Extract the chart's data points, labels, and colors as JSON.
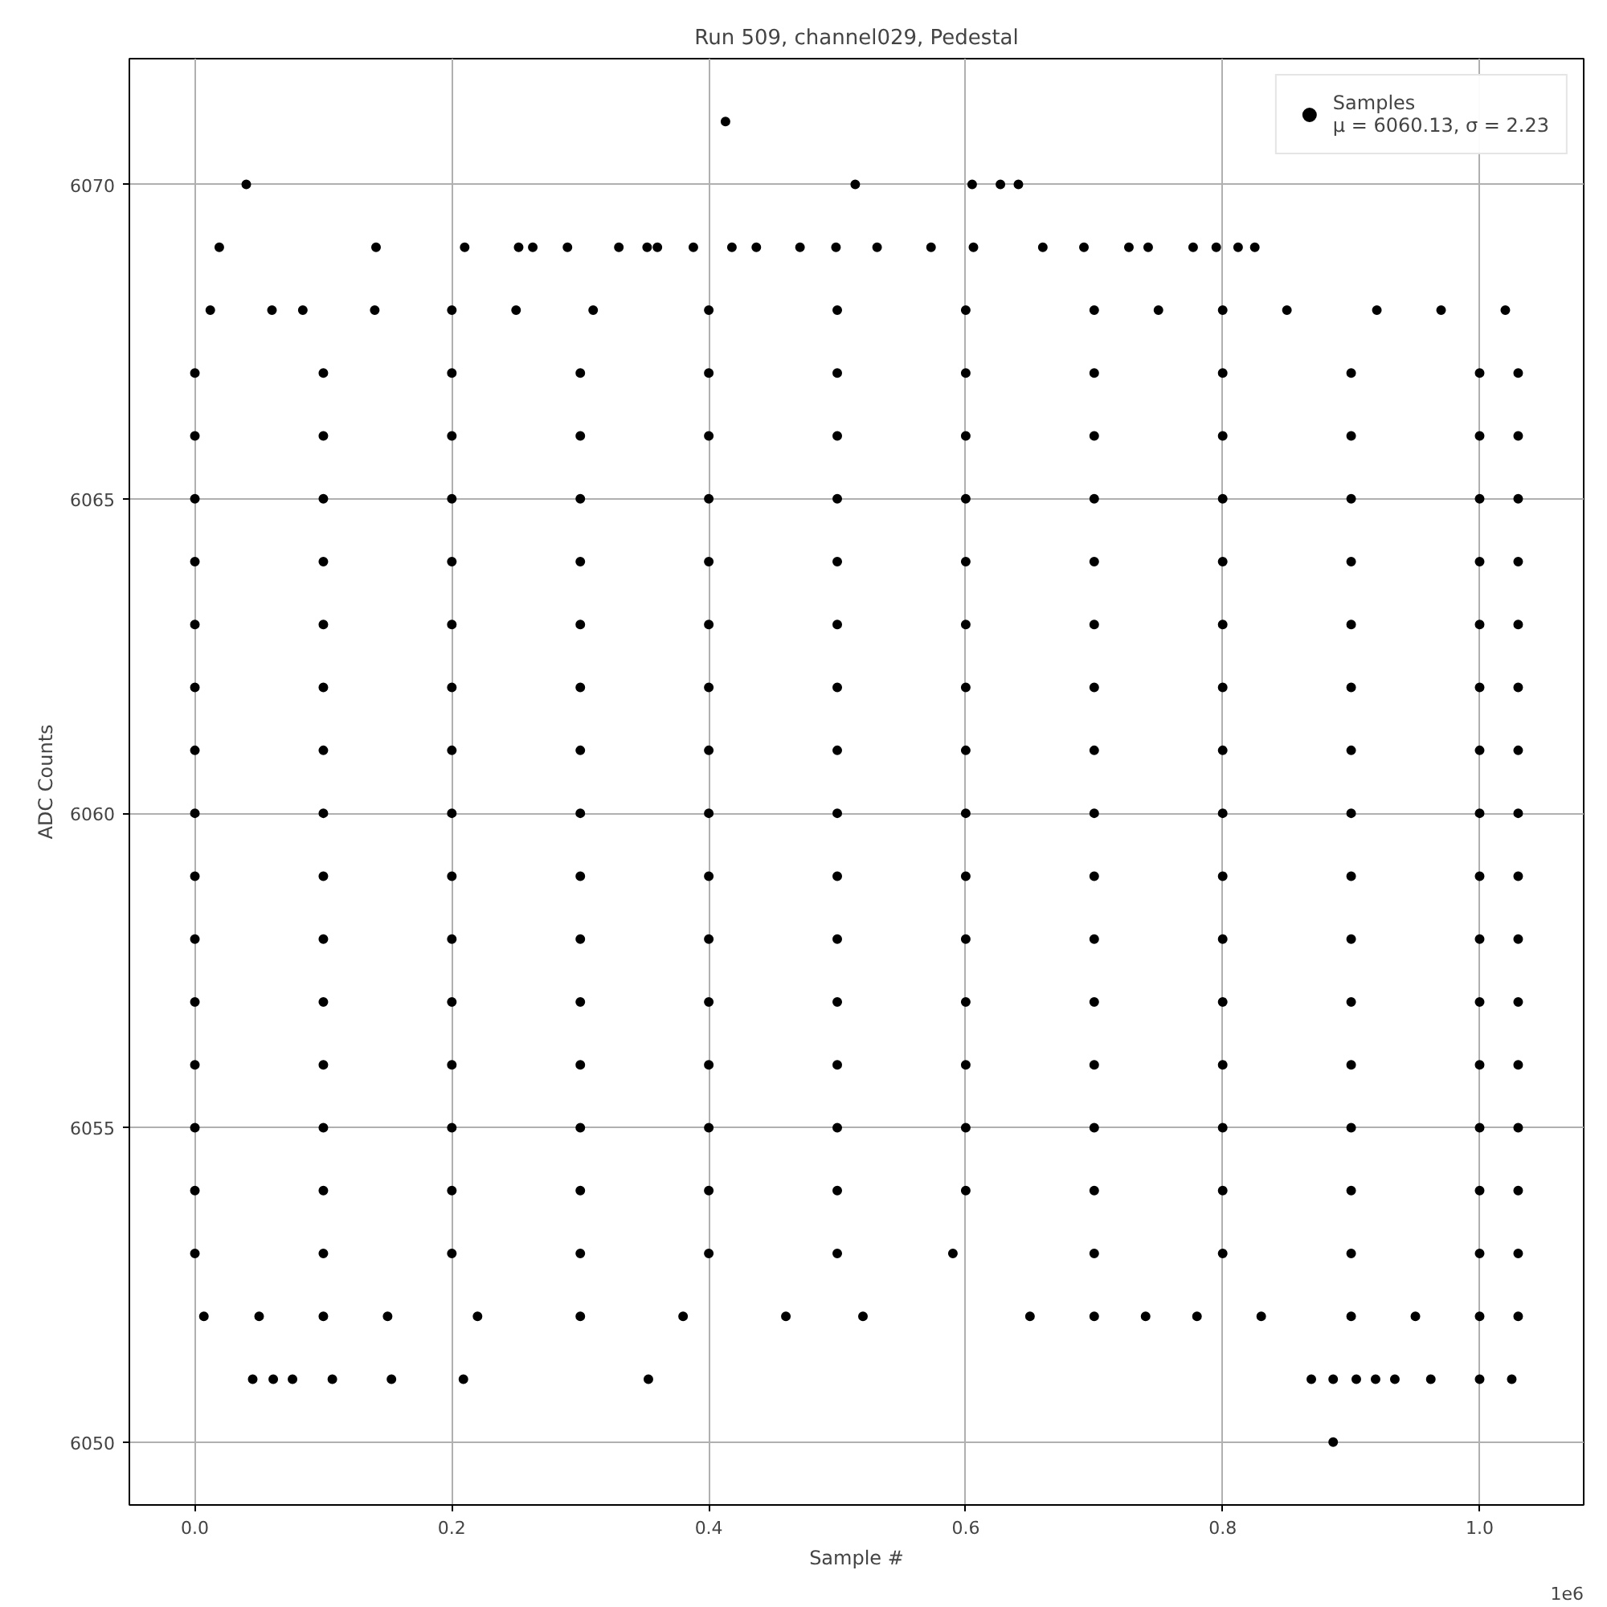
{
  "chart_data": {
    "type": "scatter",
    "title": "Run 509, channel029, Pedestal",
    "xlabel": "Sample #",
    "ylabel": "ADC Counts",
    "annotations": [
      "1e6"
    ],
    "xlim": [
      -0.051,
      1.081
    ],
    "ylim": [
      6049,
      6072
    ],
    "xticks": [
      {
        "value": 0,
        "label": "0.0"
      },
      0.2,
      0.4,
      0.6,
      0.8,
      {
        "value": 1,
        "label": "1.0"
      }
    ],
    "yticks": [
      6050,
      6055,
      6060,
      6065,
      6070
    ],
    "grid": true,
    "legend": "top right",
    "marker": "circle",
    "series": [
      {
        "name": "Samples\nμ = 6060.13, σ = 2.23",
        "color": "#000000",
        "x": [
          0,
          0.1,
          0.2,
          0.3,
          0.4,
          0.5,
          0.6,
          0.7,
          0.8,
          0.9,
          1.0,
          1.03,
          0,
          0.1,
          0.2,
          0.3,
          0.4,
          0.5,
          0.6,
          0.7,
          0.8,
          0.9,
          1.0,
          1.03,
          0,
          0.1,
          0.2,
          0.3,
          0.4,
          0.5,
          0.6,
          0.7,
          0.8,
          0.9,
          1.0,
          1.03,
          0,
          0.1,
          0.2,
          0.3,
          0.4,
          0.5,
          0.6,
          0.7,
          0.8,
          0.9,
          1.0,
          1.03,
          0,
          0.1,
          0.2,
          0.3,
          0.4,
          0.5,
          0.6,
          0.7,
          0.8,
          0.9,
          1.0,
          1.03,
          0,
          0.1,
          0.2,
          0.3,
          0.4,
          0.5,
          0.6,
          0.7,
          0.8,
          0.9,
          1.0,
          1.03,
          0,
          0.1,
          0.2,
          0.3,
          0.4,
          0.5,
          0.6,
          0.7,
          0.8,
          0.9,
          1.0,
          1.03,
          0,
          0.1,
          0.2,
          0.3,
          0.4,
          0.5,
          0.6,
          0.7,
          0.8,
          0.9,
          1.0,
          1.03,
          0,
          0.1,
          0.2,
          0.3,
          0.4,
          0.5,
          0.6,
          0.7,
          0.8,
          0.9,
          1.0,
          1.03,
          0,
          0.1,
          0.2,
          0.3,
          0.4,
          0.5,
          0.6,
          0.7,
          0.8,
          0.9,
          1.0,
          1.03,
          0,
          0.1,
          0.2,
          0.3,
          0.4,
          0.5,
          0.6,
          0.7,
          0.8,
          0.9,
          1.0,
          1.03,
          0,
          0.1,
          0.2,
          0.3,
          0.4,
          0.5,
          0.6,
          0.7,
          0.8,
          0.9,
          1.0,
          1.03,
          0,
          0.1,
          0.2,
          0.3,
          0.4,
          0.5,
          0.6,
          0.7,
          0.8,
          0.9,
          1.0,
          1.03,
          0,
          0.1,
          0.2,
          0.3,
          0.4,
          0.5,
          0.59,
          0.7,
          0.8,
          0.9,
          1.0,
          1.03,
          0,
          0.1,
          0.2,
          0.3,
          0.4,
          0.5,
          0.6,
          0.7,
          0.8,
          0.9,
          1.0,
          1.03,
          0.012,
          0.06,
          0.084,
          0.14,
          0.2,
          0.25,
          0.31,
          0.4,
          0.5,
          0.6,
          0.7,
          0.75,
          0.8,
          0.85,
          0.92,
          0.97,
          1.02,
          0.007,
          0.05,
          0.1,
          0.15,
          0.22,
          0.3,
          0.38,
          0.46,
          0.52,
          0.65,
          0.7,
          0.74,
          0.78,
          0.83,
          0.9,
          0.95,
          1.0,
          1.03,
          0.019,
          0.141,
          0.21,
          0.252,
          0.263,
          0.29,
          0.33,
          0.352,
          0.36,
          0.388,
          0.418,
          0.437,
          0.471,
          0.499,
          0.531,
          0.573,
          0.606,
          0.66,
          0.692,
          0.727,
          0.742,
          0.777,
          0.795,
          0.812,
          0.825,
          0.045,
          0.061,
          0.076,
          0.107,
          0.153,
          0.209,
          0.353,
          0.869,
          0.886,
          0.904,
          0.919,
          0.934,
          0.962,
          1.0,
          1.025,
          0.04,
          0.514,
          0.605,
          0.627,
          0.641,
          0.413,
          0.886
        ],
        "values": [
          6054,
          6054,
          6054,
          6054,
          6054,
          6054,
          6054,
          6054,
          6054,
          6054,
          6054,
          6054,
          6055,
          6055,
          6055,
          6055,
          6055,
          6055,
          6055,
          6055,
          6055,
          6055,
          6055,
          6055,
          6056,
          6056,
          6056,
          6056,
          6056,
          6056,
          6056,
          6056,
          6056,
          6056,
          6056,
          6056,
          6057,
          6057,
          6057,
          6057,
          6057,
          6057,
          6057,
          6057,
          6057,
          6057,
          6057,
          6057,
          6058,
          6058,
          6058,
          6058,
          6058,
          6058,
          6058,
          6058,
          6058,
          6058,
          6058,
          6058,
          6059,
          6059,
          6059,
          6059,
          6059,
          6059,
          6059,
          6059,
          6059,
          6059,
          6059,
          6059,
          6060,
          6060,
          6060,
          6060,
          6060,
          6060,
          6060,
          6060,
          6060,
          6060,
          6060,
          6060,
          6061,
          6061,
          6061,
          6061,
          6061,
          6061,
          6061,
          6061,
          6061,
          6061,
          6061,
          6061,
          6062,
          6062,
          6062,
          6062,
          6062,
          6062,
          6062,
          6062,
          6062,
          6062,
          6062,
          6062,
          6063,
          6063,
          6063,
          6063,
          6063,
          6063,
          6063,
          6063,
          6063,
          6063,
          6063,
          6063,
          6064,
          6064,
          6064,
          6064,
          6064,
          6064,
          6064,
          6064,
          6064,
          6064,
          6064,
          6064,
          6065,
          6065,
          6065,
          6065,
          6065,
          6065,
          6065,
          6065,
          6065,
          6065,
          6065,
          6065,
          6066,
          6066,
          6066,
          6066,
          6066,
          6066,
          6066,
          6066,
          6066,
          6066,
          6066,
          6066,
          6053,
          6053,
          6053,
          6053,
          6053,
          6053,
          6053,
          6053,
          6053,
          6053,
          6053,
          6053,
          6067,
          6067,
          6067,
          6067,
          6067,
          6067,
          6067,
          6067,
          6067,
          6067,
          6067,
          6067,
          6068,
          6068,
          6068,
          6068,
          6068,
          6068,
          6068,
          6068,
          6068,
          6068,
          6068,
          6068,
          6068,
          6068,
          6068,
          6068,
          6068,
          6052,
          6052,
          6052,
          6052,
          6052,
          6052,
          6052,
          6052,
          6052,
          6052,
          6052,
          6052,
          6052,
          6052,
          6052,
          6052,
          6052,
          6052,
          6069,
          6069,
          6069,
          6069,
          6069,
          6069,
          6069,
          6069,
          6069,
          6069,
          6069,
          6069,
          6069,
          6069,
          6069,
          6069,
          6069,
          6069,
          6069,
          6069,
          6069,
          6069,
          6069,
          6069,
          6069,
          6051,
          6051,
          6051,
          6051,
          6051,
          6051,
          6051,
          6051,
          6051,
          6051,
          6051,
          6051,
          6051,
          6051,
          6051,
          6070,
          6070,
          6070,
          6070,
          6070,
          6071,
          6050
        ]
      }
    ]
  }
}
